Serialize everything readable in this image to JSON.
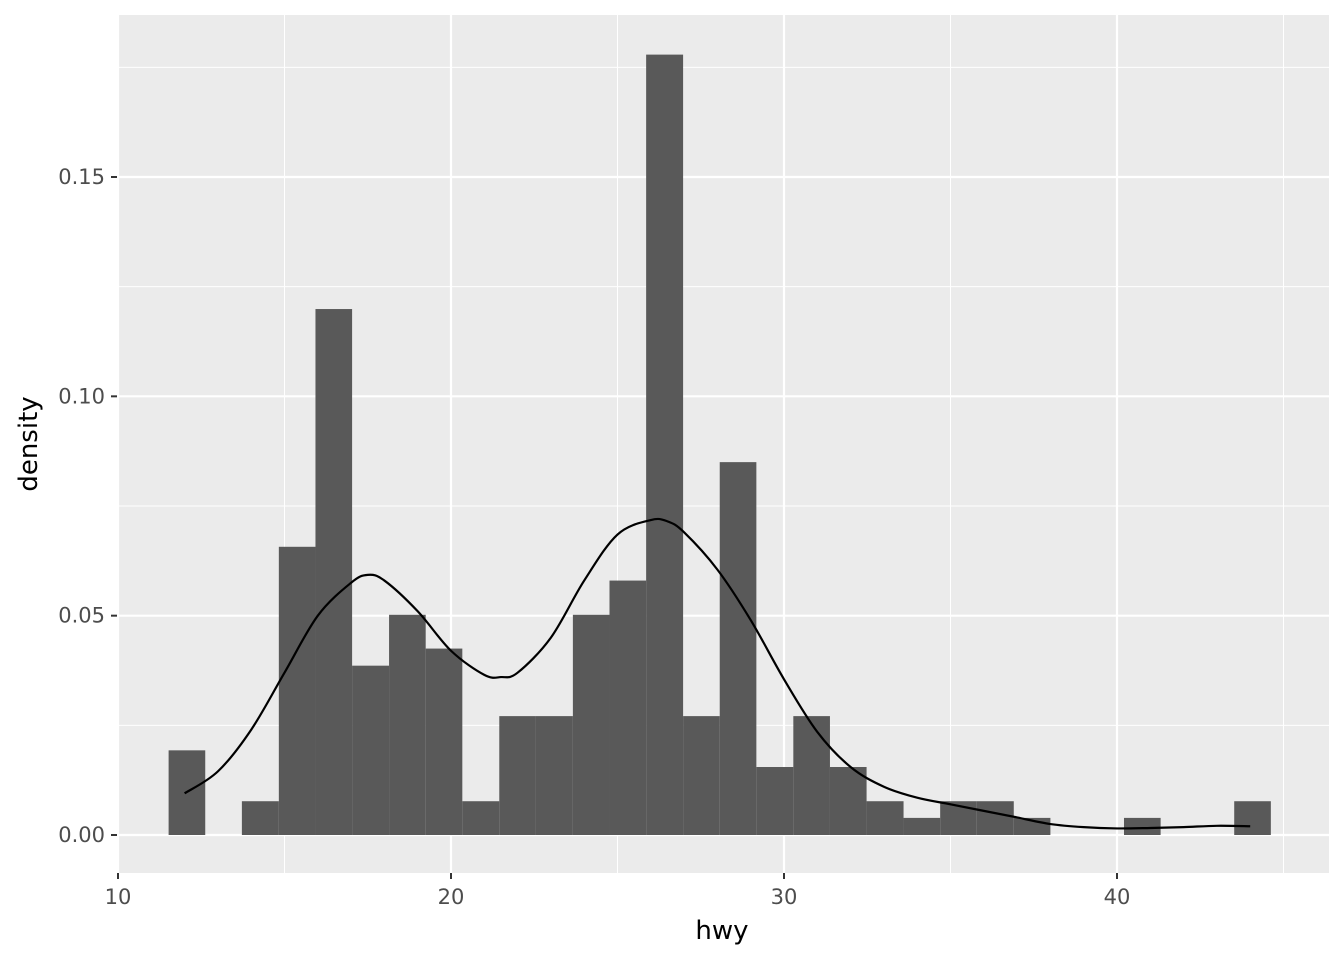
{
  "chart_data": {
    "type": "bar",
    "subtype": "histogram with density curve",
    "title": "",
    "xlabel": "hwy",
    "ylabel": "density",
    "xlim": [
      10,
      46
    ],
    "ylim": [
      0,
      0.18
    ],
    "x_ticks": [
      "10",
      "20",
      "30",
      "40"
    ],
    "y_ticks": [
      "0.00",
      "0.05",
      "0.10",
      "0.15"
    ],
    "grid": true,
    "bin_width": 1.1034,
    "bins": [
      {
        "x0": 11.52,
        "x1": 12.62,
        "density": 0.0193
      },
      {
        "x0": 13.72,
        "x1": 14.83,
        "density": 0.0077
      },
      {
        "x0": 14.83,
        "x1": 15.93,
        "density": 0.0657
      },
      {
        "x0": 15.93,
        "x1": 17.03,
        "density": 0.1199
      },
      {
        "x0": 17.03,
        "x1": 18.14,
        "density": 0.0386
      },
      {
        "x0": 18.14,
        "x1": 19.24,
        "density": 0.0502
      },
      {
        "x0": 19.24,
        "x1": 20.34,
        "density": 0.0425
      },
      {
        "x0": 20.34,
        "x1": 21.45,
        "density": 0.0077
      },
      {
        "x0": 21.45,
        "x1": 22.55,
        "density": 0.0271
      },
      {
        "x0": 22.55,
        "x1": 23.66,
        "density": 0.0271
      },
      {
        "x0": 23.66,
        "x1": 24.76,
        "density": 0.0502
      },
      {
        "x0": 24.76,
        "x1": 25.86,
        "density": 0.058
      },
      {
        "x0": 25.86,
        "x1": 26.97,
        "density": 0.1779
      },
      {
        "x0": 26.97,
        "x1": 28.07,
        "density": 0.0271
      },
      {
        "x0": 28.07,
        "x1": 29.17,
        "density": 0.085
      },
      {
        "x0": 29.17,
        "x1": 30.28,
        "density": 0.0155
      },
      {
        "x0": 30.28,
        "x1": 31.38,
        "density": 0.0271
      },
      {
        "x0": 31.38,
        "x1": 32.48,
        "density": 0.0155
      },
      {
        "x0": 32.48,
        "x1": 33.59,
        "density": 0.0077
      },
      {
        "x0": 33.59,
        "x1": 34.69,
        "density": 0.0039
      },
      {
        "x0": 34.69,
        "x1": 35.79,
        "density": 0.0077
      },
      {
        "x0": 35.79,
        "x1": 36.9,
        "density": 0.0077
      },
      {
        "x0": 36.9,
        "x1": 38.0,
        "density": 0.0039
      },
      {
        "x0": 40.21,
        "x1": 41.31,
        "density": 0.0039
      },
      {
        "x0": 43.52,
        "x1": 44.62,
        "density": 0.0077
      }
    ],
    "density_curve": {
      "x": [
        12,
        13,
        14,
        15,
        16,
        17,
        17.5,
        18,
        19,
        20,
        21,
        21.5,
        22,
        23,
        24,
        25,
        26,
        26.5,
        27,
        28,
        29,
        30,
        31,
        32,
        33,
        34,
        35,
        36,
        37,
        38,
        39,
        40,
        41,
        42,
        43,
        44
      ],
      "y": [
        0.0095,
        0.0145,
        0.024,
        0.037,
        0.05,
        0.0575,
        0.0593,
        0.058,
        0.051,
        0.042,
        0.0365,
        0.036,
        0.037,
        0.045,
        0.058,
        0.0685,
        0.0718,
        0.0715,
        0.069,
        0.0605,
        0.049,
        0.0355,
        0.0235,
        0.0155,
        0.011,
        0.0085,
        0.007,
        0.0055,
        0.004,
        0.0025,
        0.0018,
        0.0015,
        0.0016,
        0.0018,
        0.0021,
        0.002
      ]
    },
    "colors": {
      "panel_background": "#ebebeb",
      "grid_major": "#ffffff",
      "bar_fill": "#595959",
      "curve": "#000000",
      "tick_label": "#4d4d4d",
      "axis_tick": "#333333"
    }
  }
}
